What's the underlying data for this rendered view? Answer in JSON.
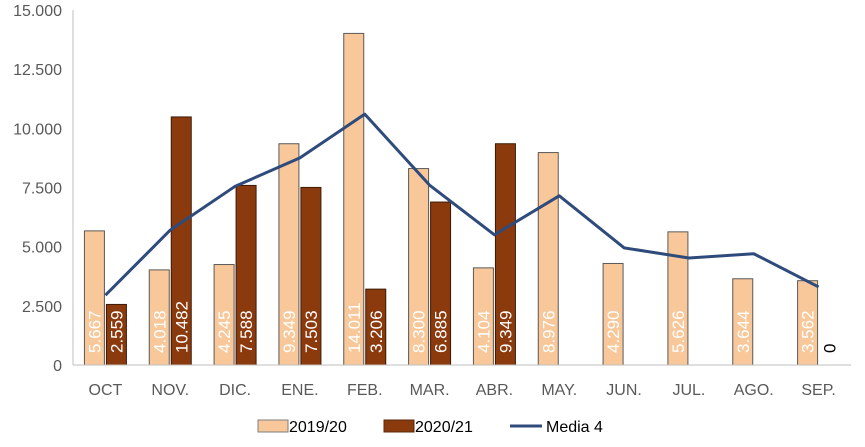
{
  "chart_data": {
    "type": "bar",
    "categories": [
      "OCT",
      "NOV.",
      "DIC.",
      "ENE.",
      "FEB.",
      "MAR.",
      "ABR.",
      "MAY.",
      "JUN.",
      "JUL.",
      "AGO.",
      "SEP."
    ],
    "series": [
      {
        "name": "2019/20",
        "type": "bar",
        "color": "#F8C89A",
        "values": [
          5667,
          4018,
          4245,
          9349,
          14011,
          8300,
          4104,
          8976,
          4290,
          5626,
          3644,
          3562
        ],
        "labels": [
          "5.667",
          "4.018",
          "4.245",
          "9.349",
          "14.011",
          "8.300",
          "4.104",
          "8.976",
          "4.290",
          "5.626",
          "3.644",
          "3.562"
        ]
      },
      {
        "name": "2020/21",
        "type": "bar",
        "color": "#8B3A0E",
        "values": [
          2559,
          10482,
          7588,
          7503,
          3206,
          6885,
          9349,
          null,
          null,
          null,
          null,
          0
        ],
        "labels": [
          "2.559",
          "10.482",
          "7.588",
          "7.503",
          "3.206",
          "6.885",
          "9.349",
          null,
          null,
          null,
          null,
          "0"
        ]
      },
      {
        "name": "Media 4",
        "type": "line",
        "color": "#2F4B7C",
        "values": [
          2950,
          5700,
          7550,
          8750,
          10600,
          7600,
          5500,
          7150,
          4950,
          4520,
          4700,
          3300
        ]
      }
    ],
    "yticks": [
      "0",
      "2.500",
      "5.000",
      "7.500",
      "10.000",
      "12.500",
      "15.000"
    ],
    "ylim": [
      0,
      15000
    ],
    "grid": false,
    "legend_position": "bottom"
  }
}
